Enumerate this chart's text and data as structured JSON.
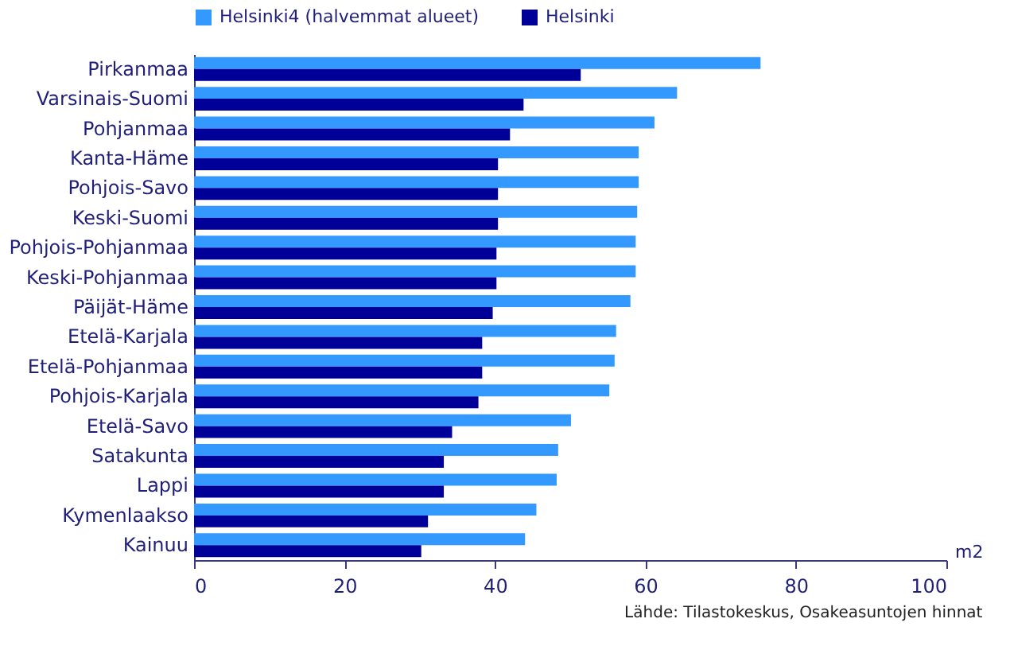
{
  "chart_data": {
    "type": "bar",
    "orientation": "horizontal",
    "xlabel": "m2",
    "legend": "top",
    "annotations": [
      "Lähde: Tilastokeskus, Osakeasuntojen hinnat"
    ],
    "categories": [
      "Pirkanmaa",
      "Varsinais-Suomi",
      "Pohjanmaa",
      "Kanta-Häme",
      "Pohjois-Savo",
      "Keski-Suomi",
      "Pohjois-Pohjanmaa",
      "Keski-Pohjanmaa",
      "Päijät-Häme",
      "Etelä-Karjala",
      "Etelä-Pohjanmaa",
      "Pohjois-Karjala",
      "Etelä-Savo",
      "Satakunta",
      "Lappi",
      "Kymenlaakso",
      "Kainuu"
    ],
    "series": [
      {
        "name": "Helsinki4 (halvemmat alueet)",
        "color": "#3399ff",
        "values": [
          75.3,
          64.2,
          61.2,
          59.1,
          59.1,
          58.9,
          58.7,
          58.7,
          58.0,
          56.1,
          55.9,
          55.2,
          50.1,
          48.4,
          48.2,
          45.5,
          44.0
        ]
      },
      {
        "name": "Helsinki",
        "color": "#000099",
        "values": [
          51.4,
          43.8,
          42.0,
          40.4,
          40.4,
          40.4,
          40.2,
          40.2,
          39.7,
          38.3,
          38.3,
          37.8,
          34.3,
          33.2,
          33.2,
          31.1,
          30.2
        ]
      }
    ],
    "xlim": [
      0,
      100
    ],
    "xticks": [
      0,
      20,
      40,
      60,
      80,
      100
    ]
  }
}
